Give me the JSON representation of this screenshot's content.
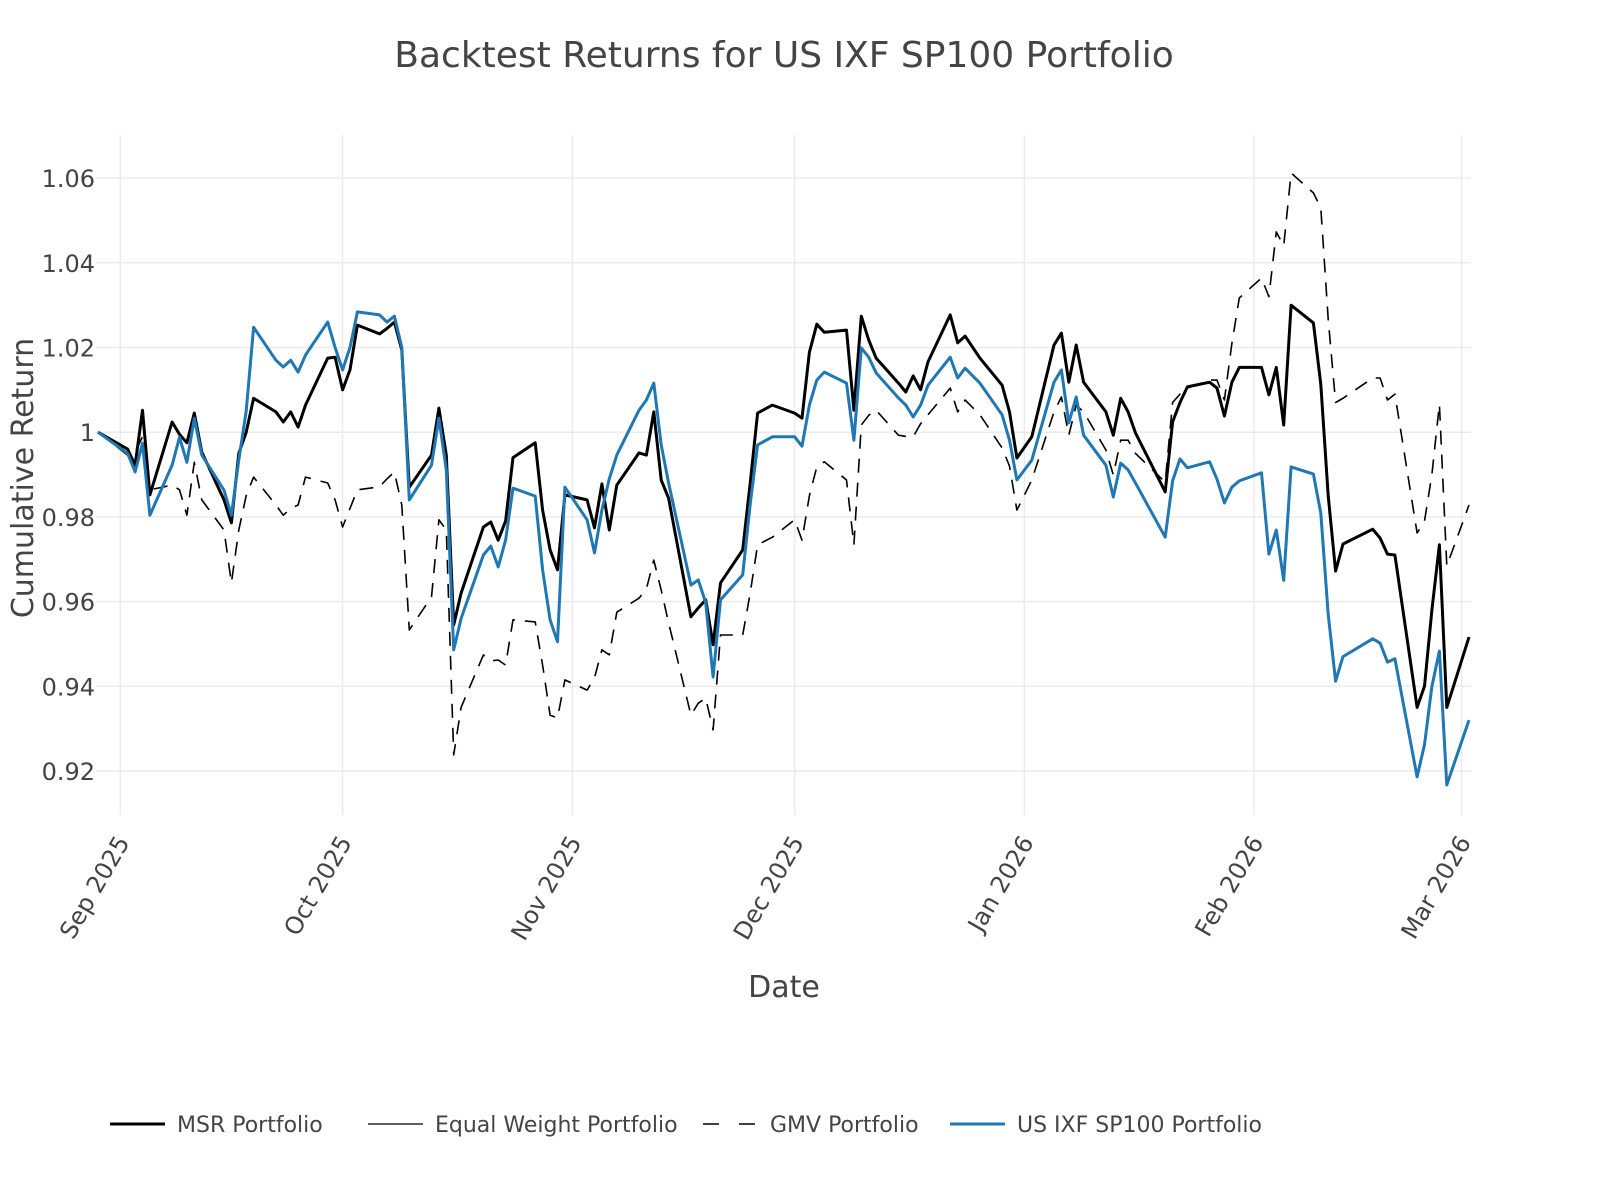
{
  "chart_data": {
    "type": "line",
    "title": "Backtest Returns for US IXF SP100 Portfolio",
    "xlabel": "Date",
    "ylabel": "Cumulative Return",
    "xlim": [
      "2025-08-29",
      "2026-03-02"
    ],
    "ylim": [
      0.9096,
      1.069
    ],
    "grid": true,
    "legend_position": "bottom",
    "x_ticks": [
      {
        "date": "2025-09-01",
        "label": "Sep 2025"
      },
      {
        "date": "2025-10-01",
        "label": "Oct 2025"
      },
      {
        "date": "2025-11-01",
        "label": "Nov 2025"
      },
      {
        "date": "2025-12-01",
        "label": "Dec 2025"
      },
      {
        "date": "2026-01-01",
        "label": "Jan 2026"
      },
      {
        "date": "2026-02-01",
        "label": "Feb 2026"
      },
      {
        "date": "2026-03-01",
        "label": "Mar 2026"
      }
    ],
    "y_ticks": [
      {
        "value": 1.06,
        "label": "1.06"
      },
      {
        "value": 1.04,
        "label": "1.04"
      },
      {
        "value": 1.02,
        "label": "1.02"
      },
      {
        "value": 1.0,
        "label": "1"
      },
      {
        "value": 0.98,
        "label": "0.98"
      },
      {
        "value": 0.96,
        "label": "0.96"
      },
      {
        "value": 0.94,
        "label": "0.94"
      },
      {
        "value": 0.92,
        "label": "0.92"
      }
    ],
    "x": [
      "2025-08-29",
      "2025-09-02",
      "2025-09-03",
      "2025-09-04",
      "2025-09-05",
      "2025-09-08",
      "2025-09-09",
      "2025-09-10",
      "2025-09-11",
      "2025-09-12",
      "2025-09-15",
      "2025-09-16",
      "2025-09-17",
      "2025-09-18",
      "2025-09-19",
      "2025-09-22",
      "2025-09-23",
      "2025-09-24",
      "2025-09-25",
      "2025-09-26",
      "2025-09-29",
      "2025-09-30",
      "2025-10-01",
      "2025-10-02",
      "2025-10-03",
      "2025-10-06",
      "2025-10-07",
      "2025-10-08",
      "2025-10-09",
      "2025-10-10",
      "2025-10-13",
      "2025-10-14",
      "2025-10-15",
      "2025-10-16",
      "2025-10-17",
      "2025-10-20",
      "2025-10-21",
      "2025-10-22",
      "2025-10-23",
      "2025-10-24",
      "2025-10-27",
      "2025-10-28",
      "2025-10-29",
      "2025-10-30",
      "2025-10-31",
      "2025-11-03",
      "2025-11-04",
      "2025-11-05",
      "2025-11-06",
      "2025-11-07",
      "2025-11-10",
      "2025-11-11",
      "2025-11-12",
      "2025-11-13",
      "2025-11-14",
      "2025-11-17",
      "2025-11-18",
      "2025-11-19",
      "2025-11-20",
      "2025-11-21",
      "2025-11-24",
      "2025-11-25",
      "2025-11-26",
      "2025-11-28",
      "2025-12-01",
      "2025-12-02",
      "2025-12-03",
      "2025-12-04",
      "2025-12-05",
      "2025-12-08",
      "2025-12-09",
      "2025-12-10",
      "2025-12-11",
      "2025-12-12",
      "2025-12-15",
      "2025-12-16",
      "2025-12-17",
      "2025-12-18",
      "2025-12-19",
      "2025-12-22",
      "2025-12-23",
      "2025-12-24",
      "2025-12-26",
      "2025-12-29",
      "2025-12-30",
      "2025-12-31",
      "2026-01-02",
      "2026-01-05",
      "2026-01-06",
      "2026-01-07",
      "2026-01-08",
      "2026-01-09",
      "2026-01-12",
      "2026-01-13",
      "2026-01-14",
      "2026-01-15",
      "2026-01-16",
      "2026-01-20",
      "2026-01-21",
      "2026-01-22",
      "2026-01-23",
      "2026-01-26",
      "2026-01-27",
      "2026-01-28",
      "2026-01-29",
      "2026-01-30",
      "2026-02-02",
      "2026-02-03",
      "2026-02-04",
      "2026-02-05",
      "2026-02-06",
      "2026-02-09",
      "2026-02-10",
      "2026-02-11",
      "2026-02-12",
      "2026-02-13",
      "2026-02-17",
      "2026-02-18",
      "2026-02-19",
      "2026-02-20",
      "2026-02-23",
      "2026-02-24",
      "2026-02-25",
      "2026-02-26",
      "2026-02-27",
      "2026-03-02"
    ],
    "series": [
      {
        "name": "MSR Portfolio",
        "color": "#000000",
        "style": "solid-thick",
        "values": [
          1.0,
          0.996,
          0.9922,
          1.0052,
          0.9852,
          1.0024,
          0.9995,
          0.9975,
          1.0045,
          0.9953,
          0.984,
          0.9786,
          0.995,
          1.0,
          1.008,
          1.0048,
          1.0024,
          1.0048,
          1.0012,
          1.0064,
          1.0175,
          1.0177,
          1.01,
          1.0147,
          1.0253,
          1.0232,
          1.0245,
          1.026,
          1.0194,
          0.987,
          0.9946,
          1.0057,
          0.9946,
          0.9545,
          0.962,
          0.9776,
          0.9788,
          0.9745,
          0.979,
          0.994,
          0.9975,
          0.9816,
          0.9722,
          0.9675,
          0.9852,
          0.984,
          0.9774,
          0.9878,
          0.9769,
          0.9875,
          0.9951,
          0.9946,
          1.0048,
          0.9887,
          0.9844,
          0.9564,
          0.9585,
          0.9604,
          0.9498,
          0.9644,
          0.9722,
          0.988,
          1.0045,
          1.0064,
          1.0045,
          1.0033,
          1.0189,
          1.0255,
          1.0236,
          1.0241,
          1.0052,
          1.0274,
          1.0218,
          1.0175,
          1.0116,
          1.0095,
          1.0133,
          1.01,
          1.0166,
          1.0277,
          1.0211,
          1.0227,
          1.0175,
          1.0111,
          1.0048,
          0.9939,
          0.9989,
          1.0206,
          1.0234,
          1.0118,
          1.0206,
          1.0118,
          1.0048,
          0.9993,
          1.008,
          1.0048,
          0.9998,
          0.9859,
          1.0024,
          1.007,
          1.0107,
          1.0118,
          1.0104,
          1.0038,
          1.0118,
          1.0153,
          1.0153,
          1.0088,
          1.0153,
          1.0017,
          1.03,
          1.0258,
          1.0113,
          0.985,
          0.9672,
          0.9736,
          0.9771,
          0.975,
          0.9712,
          0.971,
          0.935,
          0.94,
          0.958,
          0.9734,
          0.935,
          0.9516
        ]
      },
      {
        "name": "Equal Weight Portfolio",
        "color": "#000000",
        "style": "solid-thin",
        "values": [
          1.0,
          0.996,
          0.9922,
          1.0052,
          0.9852,
          1.0024,
          0.9995,
          0.9975,
          1.0045,
          0.9953,
          0.984,
          0.9786,
          0.995,
          1.0,
          1.008,
          1.0048,
          1.0024,
          1.0048,
          1.0012,
          1.0064,
          1.0175,
          1.0177,
          1.01,
          1.0147,
          1.0253,
          1.0232,
          1.0245,
          1.026,
          1.0194,
          0.987,
          0.9946,
          1.0057,
          0.9946,
          0.9545,
          0.962,
          0.9776,
          0.9788,
          0.9745,
          0.979,
          0.994,
          0.9975,
          0.9816,
          0.9722,
          0.9675,
          0.9852,
          0.984,
          0.9774,
          0.9878,
          0.9769,
          0.9875,
          0.9951,
          0.9946,
          1.0048,
          0.9887,
          0.9844,
          0.9564,
          0.9585,
          0.9604,
          0.9498,
          0.9644,
          0.9722,
          0.988,
          1.0045,
          1.0064,
          1.0045,
          1.0033,
          1.0189,
          1.0255,
          1.0236,
          1.0241,
          1.0052,
          1.0274,
          1.0218,
          1.0175,
          1.0116,
          1.0095,
          1.0133,
          1.01,
          1.0166,
          1.0277,
          1.0211,
          1.0227,
          1.0175,
          1.0111,
          1.0048,
          0.9939,
          0.9989,
          1.0206,
          1.0234,
          1.0118,
          1.0206,
          1.0118,
          1.0048,
          0.9993,
          1.008,
          1.0048,
          0.9998,
          0.9859,
          1.0024,
          1.007,
          1.0107,
          1.0118,
          1.0104,
          1.0038,
          1.0118,
          1.0153,
          1.0153,
          1.0088,
          1.0153,
          1.0017,
          1.03,
          1.0258,
          1.0113,
          0.985,
          0.9672,
          0.9736,
          0.9771,
          0.975,
          0.9712,
          0.971,
          0.935,
          0.94,
          0.958,
          0.9734,
          0.935,
          0.9516
        ]
      },
      {
        "name": "GMV Portfolio",
        "color": "#000000",
        "style": "dashed",
        "values": [
          1.0,
          0.9946,
          0.9953,
          0.9989,
          0.9864,
          0.9875,
          0.9864,
          0.9804,
          0.9929,
          0.984,
          0.9769,
          0.9644,
          0.9769,
          0.985,
          0.9894,
          0.9828,
          0.9804,
          0.982,
          0.9828,
          0.9894,
          0.988,
          0.984,
          0.9776,
          0.982,
          0.9864,
          0.9871,
          0.989,
          0.9906,
          0.9828,
          0.9533,
          0.9611,
          0.9793,
          0.9769,
          0.9238,
          0.935,
          0.9474,
          0.946,
          0.9462,
          0.945,
          0.9557,
          0.9552,
          0.945,
          0.9332,
          0.9325,
          0.9415,
          0.9391,
          0.942,
          0.9486,
          0.9474,
          0.9575,
          0.9608,
          0.963,
          0.9698,
          0.9627,
          0.955,
          0.9332,
          0.936,
          0.9372,
          0.9297,
          0.9521,
          0.9521,
          0.962,
          0.9734,
          0.9752,
          0.9793,
          0.9745,
          0.985,
          0.9918,
          0.993,
          0.9887,
          0.9734,
          1.0017,
          1.004,
          1.0052,
          0.9993,
          0.999,
          0.9989,
          1.002,
          1.0041,
          1.0104,
          1.0048,
          1.0076,
          1.0041,
          0.9963,
          0.992,
          0.9816,
          0.9887,
          1.0048,
          1.0083,
          0.9993,
          1.0064,
          1.0048,
          0.9958,
          0.9899,
          0.9981,
          0.9981,
          0.995,
          0.9882,
          1.007,
          1.009,
          1.0104,
          1.0123,
          1.0123,
          1.0076,
          1.021,
          1.0317,
          1.0364,
          1.032,
          1.0473,
          1.044,
          1.0612,
          1.0565,
          1.053,
          1.0267,
          1.007,
          1.008,
          1.0128,
          1.0128,
          1.0076,
          1.009,
          0.9762,
          0.979,
          0.99,
          1.0066,
          0.9684,
          0.9828
        ]
      },
      {
        "name": "US IXF SP100 Portfolio",
        "color": "#1f77b4",
        "style": "solid-thick",
        "values": [
          1.0,
          0.995,
          0.9906,
          0.9974,
          0.9804,
          0.9922,
          0.9988,
          0.9929,
          1.0033,
          0.9946,
          0.9863,
          0.9804,
          0.9934,
          1.005,
          1.0248,
          1.017,
          1.0154,
          1.017,
          1.0142,
          1.0182,
          1.026,
          1.02,
          1.0147,
          1.02,
          1.0284,
          1.0277,
          1.026,
          1.0274,
          1.02,
          0.984,
          0.9922,
          1.0033,
          0.9911,
          0.9486,
          0.956,
          0.971,
          0.9731,
          0.9682,
          0.9745,
          0.9868,
          0.9849,
          0.9675,
          0.9557,
          0.9505,
          0.987,
          0.9793,
          0.9715,
          0.9816,
          0.989,
          0.9946,
          1.0052,
          1.0076,
          1.0116,
          0.997,
          0.988,
          0.9639,
          0.9651,
          0.9597,
          0.9422,
          0.9604,
          0.9663,
          0.983,
          0.997,
          0.9989,
          0.9989,
          0.9967,
          1.0064,
          1.0123,
          1.0142,
          1.0116,
          0.9981,
          1.0199,
          1.0177,
          1.014,
          1.0081,
          1.0064,
          1.0036,
          1.0064,
          1.0111,
          1.0177,
          1.0128,
          1.0151,
          1.0116,
          1.0041,
          0.9981,
          0.9887,
          0.9934,
          1.0118,
          1.0147,
          1.0022,
          1.0083,
          0.9993,
          0.9922,
          0.9847,
          0.9927,
          0.9911,
          0.988,
          0.9752,
          0.9885,
          0.9937,
          0.9916,
          0.993,
          0.9889,
          0.9833,
          0.987,
          0.9885,
          0.9904,
          0.9712,
          0.9769,
          0.965,
          0.9918,
          0.9901,
          0.9809,
          0.957,
          0.9412,
          0.947,
          0.9512,
          0.9502,
          0.9457,
          0.9465,
          0.9186,
          0.9262,
          0.94,
          0.9483,
          0.9167,
          0.932
        ]
      }
    ]
  }
}
